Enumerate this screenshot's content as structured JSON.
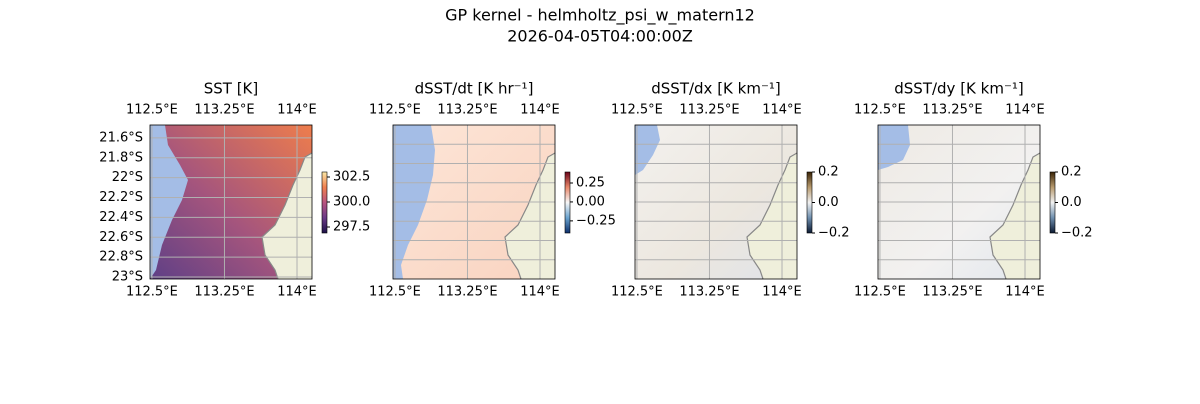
{
  "figure": {
    "title": "GP kernel - helmholtz_psi_w_matern12",
    "subtitle": "2026-04-05T04:00:00Z"
  },
  "chart_data": [
    {
      "type": "heatmap",
      "title": "SST [K]",
      "xlim": [
        112.48,
        114.155
      ],
      "ylim": [
        -23.02,
        -21.47
      ],
      "xticks": [
        {
          "value": 112.5,
          "label": "112.5°E"
        },
        {
          "value": 113.25,
          "label": "113.25°E"
        },
        {
          "value": 114,
          "label": "114°E"
        }
      ],
      "yticks": [
        {
          "value": -21.6,
          "label": "21.6°S"
        },
        {
          "value": -21.8,
          "label": "21.8°S"
        },
        {
          "value": -22,
          "label": "22°S"
        },
        {
          "value": -22.2,
          "label": "22.2°S"
        },
        {
          "value": -22.4,
          "label": "22.4°S"
        },
        {
          "value": -22.6,
          "label": "22.6°S"
        },
        {
          "value": -22.8,
          "label": "22.8°S"
        },
        {
          "value": -23,
          "label": "23°S"
        }
      ],
      "colorbar": {
        "lim": [
          296.9,
          303.0
        ],
        "ticks": [
          302.5,
          {
            "value": 300,
            "label": "300.0"
          },
          297.5
        ],
        "colors": [
          "#1d1147",
          "#6b3a87",
          "#b8547f",
          "#f07f4f",
          "#fce8a6"
        ]
      }
    },
    {
      "type": "heatmap",
      "title": "dSST/dt [K hr⁻¹]",
      "xlim": [
        112.48,
        114.155
      ],
      "ylim": [
        -23.02,
        -21.47
      ],
      "xticks": [
        {
          "value": 112.5,
          "label": "112.5°E"
        },
        {
          "value": 113.25,
          "label": "113.25°E"
        },
        {
          "value": 114,
          "label": "114°E"
        }
      ],
      "colorbar": {
        "lim": [
          -0.41,
          0.395
        ],
        "ticks": [
          0.25,
          {
            "value": 0,
            "label": "0.00"
          },
          {
            "value": -0.25,
            "label": "−0.25"
          }
        ],
        "colors": [
          "#0d2f6b",
          "#6aa3cf",
          "#f7f7f7",
          "#e8876a",
          "#6b0318"
        ]
      }
    },
    {
      "type": "heatmap",
      "title": "dSST/dx [K km⁻¹]",
      "xlim": [
        112.48,
        114.155
      ],
      "ylim": [
        -23.02,
        -21.47
      ],
      "xticks": [
        {
          "value": 112.5,
          "label": "112.5°E"
        },
        {
          "value": 113.25,
          "label": "113.25°E"
        },
        {
          "value": 114,
          "label": "114°E"
        }
      ],
      "colorbar": {
        "lim": [
          -0.2,
          0.2
        ],
        "ticks": [
          0.2,
          {
            "value": 0,
            "label": "0.0"
          },
          {
            "value": -0.2,
            "label": "−0.2"
          }
        ],
        "colors": [
          "#0b1a33",
          "#6f8fae",
          "#f2f2f2",
          "#b79a6e",
          "#3a2406"
        ]
      }
    },
    {
      "type": "heatmap",
      "title": "dSST/dy [K km⁻¹]",
      "xlim": [
        112.48,
        114.155
      ],
      "ylim": [
        -23.02,
        -21.47
      ],
      "xticks": [
        {
          "value": 112.5,
          "label": "112.5°E"
        },
        {
          "value": 113.25,
          "label": "113.25°E"
        },
        {
          "value": 114,
          "label": "114°E"
        }
      ],
      "colorbar": {
        "lim": [
          -0.2,
          0.2
        ],
        "ticks": [
          0.2,
          {
            "value": 0,
            "label": "0.0"
          },
          {
            "value": -0.2,
            "label": "−0.2"
          }
        ],
        "colors": [
          "#0b1a33",
          "#6f8fae",
          "#f2f2f2",
          "#b79a6e",
          "#3a2406"
        ]
      }
    }
  ]
}
